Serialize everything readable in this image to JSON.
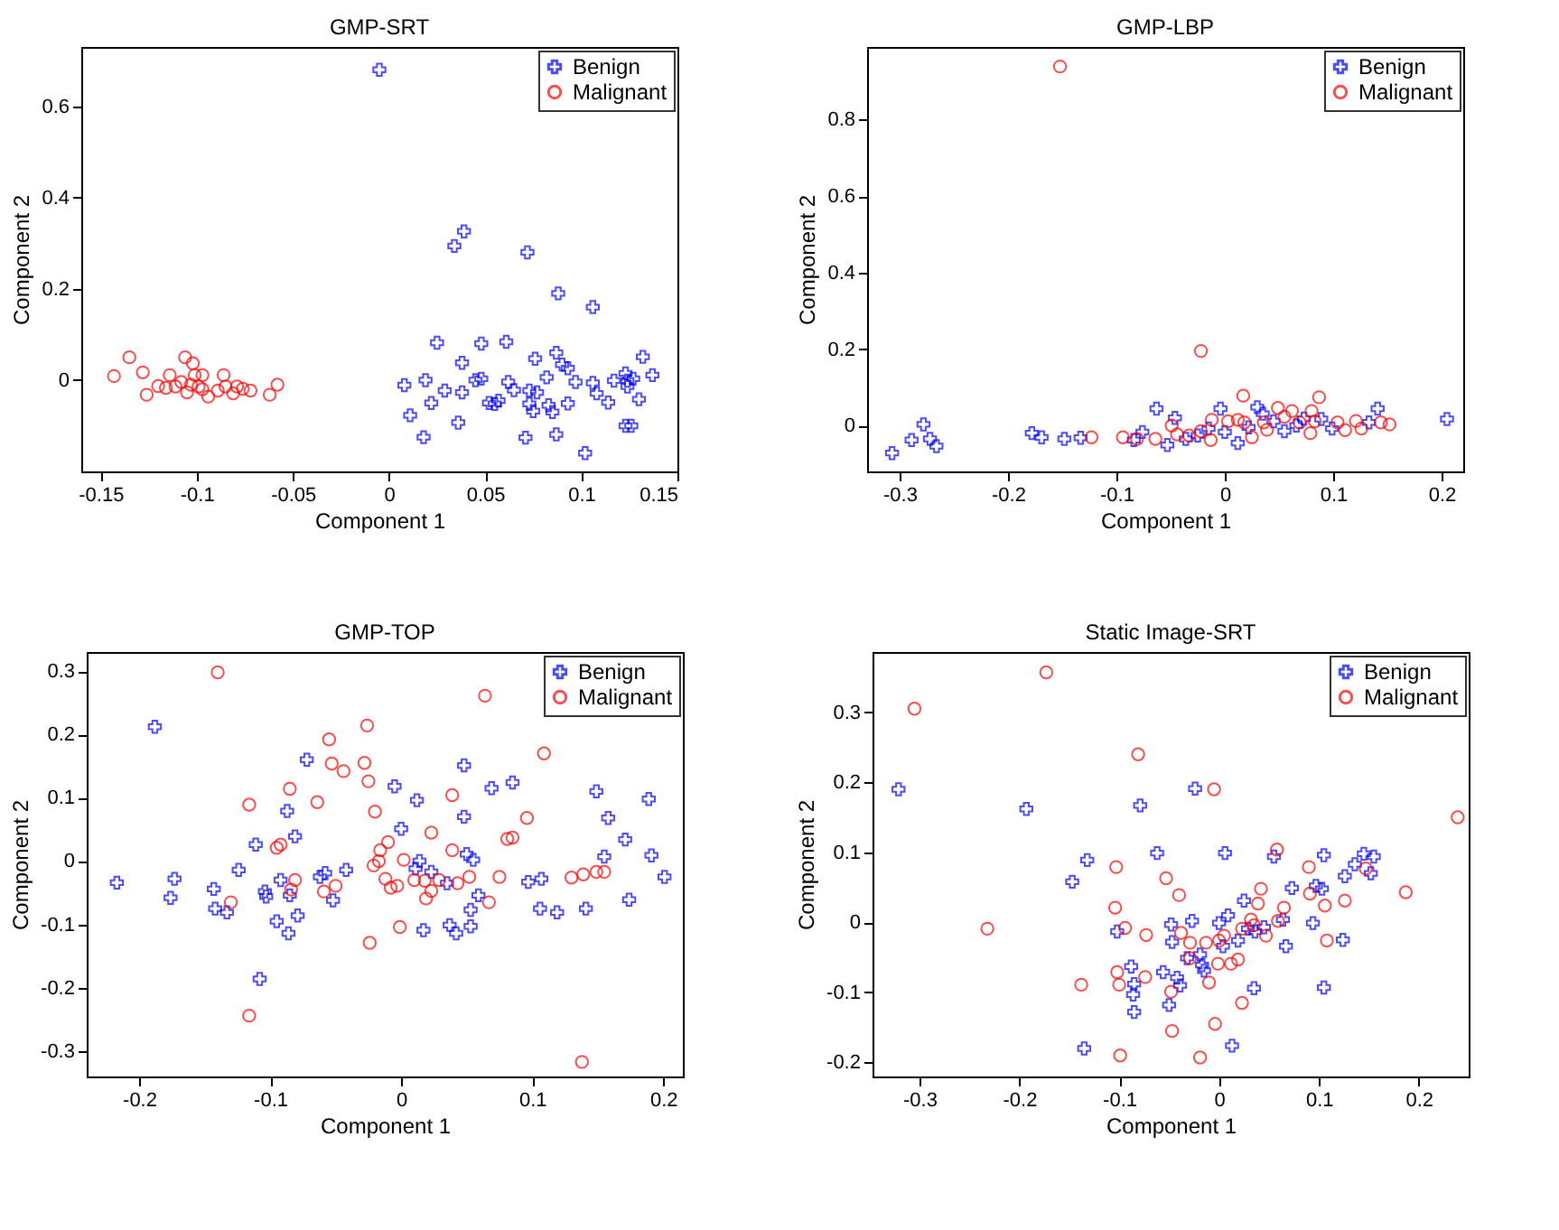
{
  "chart_data": [
    {
      "type": "scatter",
      "title": "GMP-SRT",
      "xlabel": "Component 1",
      "ylabel": "Component 2",
      "xlim": [
        -0.16,
        0.15
      ],
      "ylim": [
        -0.2,
        0.73
      ],
      "xticks": [
        -0.15,
        -0.1,
        -0.05,
        0,
        0.05,
        0.1,
        0.15
      ],
      "yticks": [
        0,
        0.2,
        0.4,
        0.6
      ],
      "legend": "top right",
      "series": [
        {
          "name": "Benign",
          "color": "#0000ff",
          "marker": "cross",
          "x": [
            -0.005,
            0.034,
            0.039,
            0.072,
            0.088,
            0.106,
            0.025,
            0.048,
            0.061,
            0.132,
            0.137,
            0.008,
            0.019,
            0.011,
            0.018,
            0.022,
            0.029,
            0.038,
            0.038,
            0.036,
            0.045,
            0.048,
            0.052,
            0.055,
            0.057,
            0.062,
            0.065,
            0.071,
            0.073,
            0.076,
            0.073,
            0.075,
            0.077,
            0.082,
            0.083,
            0.085,
            0.087,
            0.087,
            0.09,
            0.093,
            0.093,
            0.097,
            0.102,
            0.106,
            0.108,
            0.114,
            0.117,
            0.123,
            0.124,
            0.123,
            0.126,
            0.127,
            0.13,
            0.124
          ],
          "values": [
            0.68,
            0.294,
            0.326,
            0.28,
            0.19,
            0.16,
            0.082,
            0.08,
            0.084,
            0.051,
            0.011,
            -0.011,
            0,
            -0.077,
            -0.125,
            -0.05,
            -0.023,
            0.038,
            -0.027,
            -0.093,
            0,
            0.003,
            -0.05,
            -0.052,
            -0.045,
            -0.004,
            -0.022,
            -0.126,
            -0.023,
            0.047,
            -0.052,
            -0.068,
            -0.027,
            0.006,
            -0.055,
            -0.07,
            0.06,
            -0.119,
            0.034,
            0.026,
            -0.051,
            -0.004,
            -0.16,
            -0.006,
            -0.029,
            -0.049,
            -0.001,
            0.015,
            -0.001,
            -0.1,
            -0.1,
            0.003,
            -0.042,
            -0.014
          ]
        },
        {
          "name": "Malignant",
          "color": "#ff0000",
          "marker": "circle",
          "x": [
            -0.143,
            -0.135,
            -0.128,
            -0.126,
            -0.12,
            -0.116,
            -0.114,
            -0.111,
            -0.106,
            -0.105,
            -0.102,
            -0.101,
            -0.099,
            -0.097,
            -0.094,
            -0.089,
            -0.086,
            -0.085,
            -0.081,
            -0.079,
            -0.076,
            -0.072,
            -0.062,
            -0.058,
            -0.108,
            -0.103,
            -0.097
          ],
          "values": [
            0.009,
            0.05,
            0.017,
            -0.032,
            -0.013,
            -0.017,
            0.011,
            -0.014,
            0.05,
            -0.027,
            0.037,
            0.011,
            -0.014,
            0.011,
            -0.036,
            -0.023,
            0.011,
            -0.014,
            -0.029,
            -0.014,
            -0.019,
            -0.023,
            -0.032,
            -0.01,
            -0.004,
            -0.01,
            -0.02
          ]
        }
      ]
    },
    {
      "type": "scatter",
      "title": "GMP-LBP",
      "xlabel": "Component 1",
      "ylabel": "Component 2",
      "xlim": [
        -0.33,
        0.22
      ],
      "ylim": [
        -0.12,
        0.99
      ],
      "xticks": [
        -0.3,
        -0.2,
        -0.1,
        0,
        0.1,
        0.2
      ],
      "yticks": [
        0,
        0.2,
        0.4,
        0.6,
        0.8
      ],
      "legend": "top right",
      "series": [
        {
          "name": "Benign",
          "color": "#0000ff",
          "marker": "cross",
          "x": [
            -0.307,
            -0.289,
            -0.278,
            -0.272,
            -0.266,
            -0.178,
            -0.169,
            -0.148,
            -0.133,
            -0.084,
            -0.076,
            -0.063,
            -0.053,
            -0.046,
            -0.036,
            -0.025,
            -0.015,
            -0.004,
            0,
            0.012,
            0.022,
            0.03,
            0.035,
            0.045,
            0.055,
            0.066,
            0.073,
            0.089,
            0.099,
            0.141,
            0.205,
            0.133
          ],
          "values": [
            -0.072,
            -0.038,
            0.003,
            -0.035,
            -0.054,
            -0.02,
            -0.031,
            -0.035,
            -0.032,
            -0.038,
            -0.017,
            0.044,
            -0.051,
            0.02,
            -0.035,
            -0.026,
            -0.008,
            0.044,
            -0.017,
            -0.046,
            -0.005,
            0.048,
            0.031,
            0.011,
            -0.015,
            0,
            0.018,
            0.017,
            -0.008,
            0.044,
            0.017,
            0.008
          ]
        },
        {
          "name": "Malignant",
          "color": "#ff0000",
          "marker": "circle",
          "x": [
            -0.152,
            -0.022,
            0.017,
            0.087,
            -0.123,
            -0.094,
            -0.081,
            -0.064,
            -0.049,
            -0.044,
            -0.033,
            -0.022,
            -0.012,
            -0.013,
            0.003,
            0.012,
            0.018,
            0.025,
            0.036,
            0.049,
            0.055,
            0.062,
            0.069,
            0.08,
            0.083,
            0.079,
            0.104,
            0.111,
            0.121,
            0.126,
            0.144,
            0.152,
            0.039
          ],
          "values": [
            0.939,
            0.195,
            0.078,
            0.074,
            -0.031,
            -0.031,
            -0.035,
            -0.035,
            0,
            -0.023,
            -0.026,
            -0.015,
            0.015,
            -0.038,
            0.011,
            0.015,
            0.008,
            -0.031,
            0.008,
            0.046,
            0.023,
            0.038,
            0.008,
            0.038,
            0.011,
            -0.02,
            0.008,
            -0.012,
            0.012,
            -0.008,
            0.008,
            0.003,
            -0.011
          ]
        }
      ]
    },
    {
      "type": "scatter",
      "title": "GMP-TOP",
      "xlabel": "Component 1",
      "ylabel": "Component 2",
      "xlim": [
        -0.24,
        0.215
      ],
      "ylim": [
        -0.34,
        0.33
      ],
      "xticks": [
        -0.2,
        -0.1,
        0,
        0.1,
        0.2
      ],
      "yticks": [
        -0.3,
        -0.2,
        -0.1,
        0,
        0.1,
        0.2,
        0.3
      ],
      "legend": "top right",
      "series": [
        {
          "name": "Benign",
          "color": "#0000ff",
          "marker": "cross",
          "x": [
            -0.217,
            -0.188,
            -0.176,
            -0.173,
            -0.143,
            -0.142,
            -0.133,
            -0.124,
            -0.111,
            -0.108,
            -0.104,
            -0.103,
            -0.095,
            -0.092,
            -0.087,
            -0.086,
            -0.081,
            -0.079,
            -0.085,
            -0.072,
            -0.062,
            -0.058,
            -0.052,
            -0.042,
            -0.005,
            0,
            0.011,
            0.012,
            0.014,
            0.017,
            0.023,
            0.035,
            0.037,
            0.042,
            0.048,
            0.048,
            0.05,
            0.055,
            0.053,
            0.053,
            0.059,
            0.069,
            0.085,
            0.097,
            0.107,
            0.106,
            0.119,
            0.141,
            0.149,
            0.155,
            0.158,
            0.171,
            0.174,
            0.189,
            0.191,
            0.201
          ],
          "values": [
            -0.034,
            0.212,
            -0.058,
            -0.028,
            -0.044,
            -0.075,
            -0.081,
            -0.014,
            0.026,
            -0.186,
            -0.048,
            -0.056,
            -0.095,
            -0.03,
            0.079,
            -0.114,
            0.039,
            -0.086,
            -0.054,
            0.16,
            -0.025,
            -0.019,
            -0.062,
            -0.014,
            0.118,
            0.051,
            -0.012,
            0.096,
            0,
            -0.109,
            -0.017,
            -0.035,
            -0.101,
            -0.114,
            0.151,
            0.07,
            0.011,
            0.002,
            -0.077,
            -0.103,
            -0.054,
            0.115,
            0.124,
            -0.033,
            -0.028,
            -0.075,
            -0.081,
            -0.075,
            0.11,
            0.007,
            0.068,
            0.034,
            -0.061,
            0.098,
            0.009,
            -0.025
          ]
        },
        {
          "name": "Malignant",
          "color": "#ff0000",
          "marker": "circle",
          "x": [
            -0.14,
            -0.13,
            -0.116,
            -0.116,
            -0.095,
            -0.092,
            -0.085,
            -0.084,
            -0.081,
            -0.064,
            -0.059,
            -0.055,
            -0.053,
            -0.05,
            -0.044,
            -0.028,
            -0.026,
            -0.025,
            -0.024,
            -0.02,
            -0.021,
            -0.017,
            -0.016,
            -0.012,
            -0.01,
            -0.008,
            -0.003,
            -0.001,
            0.002,
            0.01,
            0.018,
            0.019,
            0.023,
            0.023,
            0.029,
            0.039,
            0.039,
            0.043,
            0.052,
            0.064,
            0.067,
            0.075,
            0.081,
            0.085,
            0.096,
            0.109,
            0.13,
            0.139,
            0.138,
            0.149,
            0.155
          ],
          "values": [
            0.298,
            -0.065,
            0.089,
            -0.244,
            0.021,
            0.026,
            0.114,
            -0.045,
            -0.03,
            0.093,
            -0.048,
            0.192,
            0.154,
            -0.039,
            0.142,
            0.155,
            0.214,
            0.126,
            -0.129,
            0.078,
            -0.007,
            0,
            0.017,
            -0.028,
            0.03,
            -0.042,
            -0.039,
            -0.104,
            0.002,
            -0.03,
            -0.031,
            -0.059,
            0.045,
            -0.047,
            -0.03,
            0.104,
            0.017,
            -0.035,
            -0.025,
            0.261,
            -0.065,
            -0.025,
            0.035,
            0.037,
            0.068,
            0.17,
            -0.026,
            -0.021,
            -0.317,
            -0.017,
            -0.017
          ]
        }
      ]
    },
    {
      "type": "scatter",
      "title": "Static Image-SRT",
      "xlabel": "Component 1",
      "ylabel": "Component 2",
      "xlim": [
        -0.347,
        0.25
      ],
      "ylim": [
        -0.22,
        0.386
      ],
      "xticks": [
        -0.3,
        -0.2,
        -0.1,
        0,
        0.1,
        0.2
      ],
      "yticks": [
        -0.2,
        -0.1,
        0,
        0.1,
        0.2,
        0.3
      ],
      "legend": "top right",
      "series": [
        {
          "name": "Benign",
          "color": "#0000ff",
          "marker": "cross",
          "x": [
            -0.321,
            -0.193,
            -0.147,
            -0.132,
            -0.135,
            -0.102,
            -0.088,
            -0.085,
            -0.086,
            -0.085,
            -0.079,
            -0.062,
            -0.056,
            -0.05,
            -0.048,
            -0.047,
            -0.042,
            -0.039,
            -0.032,
            -0.027,
            -0.024,
            -0.019,
            -0.017,
            -0.015,
            0,
            0.004,
            0.006,
            0.009,
            0.013,
            0.019,
            0.025,
            0.029,
            0.036,
            0.035,
            0.045,
            0.055,
            0.064,
            0.067,
            0.073,
            0.094,
            0.097,
            0.103,
            0.105,
            0.105,
            0.124,
            0.126,
            0.136,
            0.145,
            0.152,
            0.155
          ],
          "values": [
            0.19,
            0.162,
            0.058,
            0.089,
            -0.18,
            -0.013,
            -0.063,
            -0.088,
            -0.103,
            -0.128,
            0.167,
            0.099,
            -0.071,
            -0.118,
            -0.003,
            -0.028,
            -0.079,
            -0.09,
            -0.051,
            0.002,
            0.191,
            -0.046,
            -0.061,
            -0.069,
            -0.001,
            -0.034,
            0.099,
            0.01,
            -0.176,
            -0.026,
            0.031,
            -0.009,
            -0.013,
            -0.094,
            -0.007,
            0.094,
            0.004,
            -0.034,
            0.049,
            -0.001,
            0.052,
            0.048,
            0.096,
            -0.093,
            -0.025,
            0.066,
            0.083,
            0.098,
            0.07,
            0.094
          ]
        },
        {
          "name": "Malignant",
          "color": "#ff0000",
          "marker": "circle",
          "x": [
            -0.305,
            -0.173,
            -0.232,
            -0.138,
            -0.103,
            -0.104,
            -0.102,
            -0.1,
            -0.099,
            -0.094,
            -0.081,
            -0.073,
            -0.074,
            -0.053,
            -0.048,
            -0.047,
            -0.04,
            -0.038,
            -0.029,
            -0.029,
            -0.019,
            -0.013,
            -0.01,
            -0.005,
            -0.004,
            -0.001,
            0,
            0.005,
            0.012,
            0.019,
            0.023,
            0.023,
            0.032,
            0.035,
            0.039,
            0.042,
            0.047,
            0.058,
            0.059,
            0.065,
            0.09,
            0.091,
            0.106,
            0.108,
            0.126,
            0.147,
            0.187,
            0.239
          ],
          "values": [
            0.305,
            0.357,
            -0.009,
            -0.089,
            0.079,
            0.021,
            -0.071,
            -0.089,
            -0.19,
            -0.008,
            0.24,
            -0.018,
            -0.078,
            0.063,
            -0.099,
            -0.155,
            0.039,
            -0.015,
            -0.029,
            -0.051,
            -0.193,
            -0.029,
            -0.086,
            0.19,
            -0.145,
            -0.059,
            -0.026,
            -0.019,
            -0.059,
            -0.053,
            -0.009,
            -0.115,
            0.004,
            -0.004,
            0.027,
            0.048,
            -0.019,
            0.104,
            0.002,
            0.021,
            0.079,
            0.041,
            0.024,
            -0.026,
            0.031,
            0.077,
            0.043,
            0.15
          ]
        }
      ]
    }
  ]
}
